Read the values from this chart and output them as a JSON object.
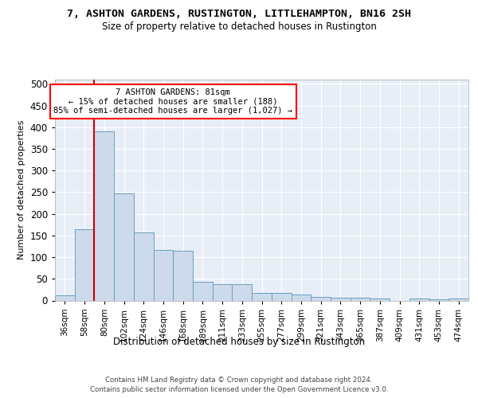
{
  "title": "7, ASHTON GARDENS, RUSTINGTON, LITTLEHAMPTON, BN16 2SH",
  "subtitle": "Size of property relative to detached houses in Rustington",
  "xlabel": "Distribution of detached houses by size in Rustington",
  "ylabel": "Number of detached properties",
  "footer_line1": "Contains HM Land Registry data © Crown copyright and database right 2024.",
  "footer_line2": "Contains public sector information licensed under the Open Government Licence v3.0.",
  "annotation_line1": "7 ASHTON GARDENS: 81sqm",
  "annotation_line2": "← 15% of detached houses are smaller (188)",
  "annotation_line3": "85% of semi-detached houses are larger (1,027) →",
  "bar_color": "#cddaeb",
  "bar_edge_color": "#6a9fc0",
  "redline_color": "#cc0000",
  "plot_bg_color": "#e8eef7",
  "grid_color": "#ffffff",
  "categories": [
    "36sqm",
    "58sqm",
    "80sqm",
    "102sqm",
    "124sqm",
    "146sqm",
    "168sqm",
    "189sqm",
    "211sqm",
    "233sqm",
    "255sqm",
    "277sqm",
    "299sqm",
    "321sqm",
    "343sqm",
    "365sqm",
    "387sqm",
    "409sqm",
    "431sqm",
    "453sqm",
    "474sqm"
  ],
  "values": [
    12,
    165,
    390,
    248,
    157,
    116,
    115,
    43,
    38,
    38,
    18,
    17,
    13,
    8,
    6,
    6,
    5,
    0,
    4,
    2,
    5
  ],
  "redline_x": 1.5,
  "ylim": [
    0,
    510
  ],
  "yticks": [
    0,
    50,
    100,
    150,
    200,
    250,
    300,
    350,
    400,
    450,
    500
  ]
}
